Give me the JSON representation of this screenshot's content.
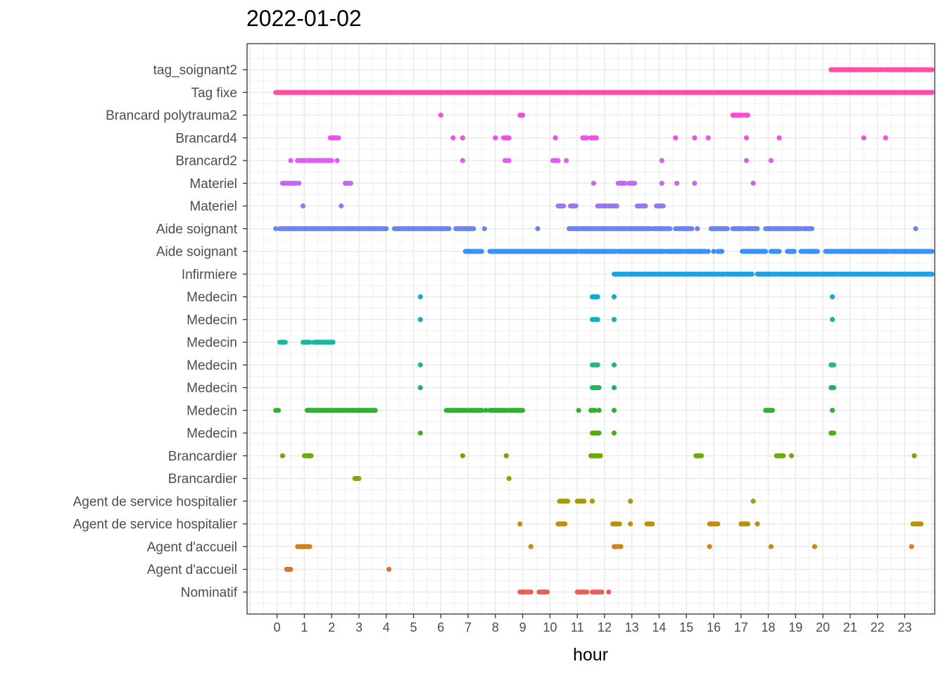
{
  "chart_data": {
    "type": "scatter",
    "title": "2022-01-02",
    "xlabel": "hour",
    "ylabel": "",
    "xlim": [
      -1.1,
      24.1
    ],
    "x_ticks": [
      "0",
      "1",
      "2",
      "3",
      "4",
      "5",
      "6",
      "7",
      "8",
      "9",
      "10",
      "11",
      "12",
      "13",
      "14",
      "15",
      "16",
      "17",
      "18",
      "19",
      "20",
      "21",
      "22",
      "23"
    ],
    "grid": true,
    "legend": "none",
    "panel_border": "#333333",
    "grid_color": "#ebebeb",
    "series": [
      {
        "name": "tag_soignant2",
        "color": "#FF4FA2",
        "segments": [
          [
            20.3,
            21.9
          ],
          [
            22.0,
            22.2
          ],
          [
            22.3,
            24.0
          ]
        ],
        "points": []
      },
      {
        "name": "Tag fixe",
        "color": "#FF4FA2",
        "segments": [
          [
            -0.05,
            24.0
          ]
        ],
        "points": []
      },
      {
        "name": "Brancard polytrauma2",
        "color": "#F94ED3",
        "segments": [
          [
            8.9,
            9.0
          ],
          [
            16.7,
            17.0
          ],
          [
            17.2,
            17.25
          ]
        ],
        "points": [
          6.0,
          17.1
        ]
      },
      {
        "name": "Brancard4",
        "color": "#EE51E8",
        "segments": [
          [
            1.95,
            2.25
          ],
          [
            8.3,
            8.5
          ],
          [
            11.2,
            11.35
          ],
          [
            11.5,
            11.7
          ]
        ],
        "points": [
          6.45,
          6.8,
          8.0,
          10.2,
          14.6,
          15.3,
          15.8,
          17.2,
          18.4,
          21.5,
          22.3
        ]
      },
      {
        "name": "Brancard2",
        "color": "#DE5DF2",
        "segments": [
          [
            0.75,
            2.0
          ],
          [
            10.1,
            10.3
          ],
          [
            8.35,
            8.5
          ]
        ],
        "points": [
          0.5,
          2.2,
          6.8,
          10.6,
          14.1,
          17.2,
          18.1
        ]
      },
      {
        "name": "Materiel",
        "color": "#C169F5",
        "segments": [
          [
            0.2,
            0.7
          ],
          [
            2.5,
            2.7
          ],
          [
            12.5,
            12.75
          ],
          [
            12.9,
            13.1
          ]
        ],
        "points": [
          0.8,
          11.6,
          14.1,
          14.65,
          15.3,
          17.45
        ]
      },
      {
        "name": "Materiel",
        "color": "#9A77F2",
        "segments": [
          [
            10.3,
            10.5
          ],
          [
            10.75,
            10.95
          ],
          [
            11.75,
            12.05
          ],
          [
            12.15,
            12.45
          ],
          [
            13.2,
            13.5
          ],
          [
            13.9,
            14.15
          ]
        ],
        "points": [
          0.95,
          2.35
        ]
      },
      {
        "name": "Aide soignant",
        "color": "#6A83F5",
        "segments": [
          [
            0.1,
            2.0
          ],
          [
            2.0,
            3.4
          ],
          [
            3.4,
            4.0
          ],
          [
            4.3,
            6.3
          ],
          [
            6.55,
            7.2
          ],
          [
            10.7,
            12.0
          ],
          [
            12.0,
            13.7
          ],
          [
            13.8,
            14.4
          ],
          [
            14.6,
            15.2
          ],
          [
            15.9,
            16.5
          ],
          [
            16.7,
            17.1
          ],
          [
            17.2,
            17.6
          ],
          [
            17.9,
            19.2
          ],
          [
            19.3,
            19.6
          ]
        ],
        "points": [
          -0.05,
          7.6,
          9.55,
          15.4,
          23.4
        ]
      },
      {
        "name": "Aide soignant",
        "color": "#3A92F7",
        "segments": [
          [
            6.9,
            7.5
          ],
          [
            7.8,
            10.0
          ],
          [
            10.0,
            11.0
          ],
          [
            11.1,
            12.4
          ],
          [
            12.5,
            14.2
          ],
          [
            14.3,
            14.9
          ],
          [
            15.0,
            15.7
          ],
          [
            16.15,
            16.3
          ],
          [
            17.05,
            17.9
          ],
          [
            18.1,
            18.4
          ],
          [
            18.7,
            18.95
          ],
          [
            19.2,
            19.8
          ],
          [
            20.1,
            20.5
          ],
          [
            20.6,
            22.4
          ],
          [
            22.5,
            24.0
          ]
        ],
        "points": [
          15.8,
          16.0,
          18.9,
          20.6
        ]
      },
      {
        "name": "Infirmiere",
        "color": "#1AA1E8",
        "segments": [
          [
            12.35,
            15.3
          ],
          [
            15.4,
            16.4
          ],
          [
            16.5,
            17.4
          ],
          [
            17.6,
            18.3
          ],
          [
            18.4,
            20.5
          ],
          [
            20.6,
            24.0
          ]
        ],
        "points": []
      },
      {
        "name": "Medecin",
        "color": "#11ACD0",
        "segments": [
          [
            11.55,
            11.75
          ]
        ],
        "points": [
          5.25,
          12.35,
          20.35
        ]
      },
      {
        "name": "Medecin",
        "color": "#0DB3BA",
        "segments": [
          [
            11.55,
            11.75
          ]
        ],
        "points": [
          5.25,
          12.35,
          20.35
        ]
      },
      {
        "name": "Medecin",
        "color": "#14B8A5",
        "segments": [
          [
            0.1,
            0.3
          ],
          [
            0.95,
            1.2
          ],
          [
            1.35,
            2.05
          ]
        ],
        "points": []
      },
      {
        "name": "Medecin",
        "color": "#1CB981",
        "segments": [
          [
            11.55,
            11.75
          ],
          [
            20.3,
            20.4
          ]
        ],
        "points": [
          5.25,
          12.35
        ]
      },
      {
        "name": "Medecin",
        "color": "#1EB65E",
        "segments": [
          [
            11.55,
            11.8
          ],
          [
            20.3,
            20.4
          ]
        ],
        "points": [
          5.25,
          12.35
        ]
      },
      {
        "name": "Medecin",
        "color": "#2BB32E",
        "segments": [
          [
            -0.05,
            0.05
          ],
          [
            1.1,
            2.0
          ],
          [
            2.05,
            3.6
          ],
          [
            6.2,
            7.0
          ],
          [
            7.1,
            7.5
          ],
          [
            7.8,
            8.4
          ],
          [
            8.5,
            9.0
          ],
          [
            11.5,
            11.65
          ],
          [
            17.9,
            18.15
          ]
        ],
        "points": [
          7.65,
          11.05,
          11.8,
          12.35,
          20.35
        ]
      },
      {
        "name": "Medecin",
        "color": "#4DAE0E",
        "segments": [
          [
            11.55,
            11.8
          ],
          [
            20.3,
            20.4
          ]
        ],
        "points": [
          5.25,
          12.35
        ]
      },
      {
        "name": "Brancardier",
        "color": "#6FA80A",
        "segments": [
          [
            1.0,
            1.25
          ],
          [
            11.5,
            11.85
          ],
          [
            15.35,
            15.55
          ],
          [
            18.3,
            18.55
          ]
        ],
        "points": [
          0.2,
          6.8,
          8.4,
          18.85,
          23.35
        ]
      },
      {
        "name": "Brancardier",
        "color": "#8FA10A",
        "segments": [
          [
            2.85,
            3.0
          ]
        ],
        "points": [
          8.5
        ]
      },
      {
        "name": "Agent de service hospitalier",
        "color": "#A79A0B",
        "segments": [
          [
            10.35,
            10.65
          ],
          [
            11.0,
            11.25
          ]
        ],
        "points": [
          11.55,
          12.95,
          17.45
        ]
      },
      {
        "name": "Agent de service hospitalier",
        "color": "#BD900B",
        "segments": [
          [
            10.3,
            10.55
          ],
          [
            12.3,
            12.55
          ],
          [
            13.55,
            13.75
          ],
          [
            15.85,
            16.15
          ],
          [
            17.0,
            17.25
          ],
          [
            23.3,
            23.6
          ]
        ],
        "points": [
          8.9,
          12.95,
          17.6
        ]
      },
      {
        "name": "Agent d'accueil",
        "color": "#D38316",
        "segments": [
          [
            0.75,
            1.2
          ],
          [
            12.35,
            12.6
          ]
        ],
        "points": [
          9.3,
          15.85,
          18.1,
          19.7,
          23.25
        ]
      },
      {
        "name": "Agent d'accueil",
        "color": "#E0702C",
        "segments": [
          [
            0.35,
            0.5
          ]
        ],
        "points": [
          4.1
        ]
      },
      {
        "name": "Nominatif",
        "color": "#EC5E52",
        "segments": [
          [
            8.9,
            9.3
          ],
          [
            9.6,
            9.9
          ],
          [
            11.0,
            11.35
          ],
          [
            11.55,
            11.9
          ]
        ],
        "points": [
          12.15
        ]
      }
    ]
  }
}
